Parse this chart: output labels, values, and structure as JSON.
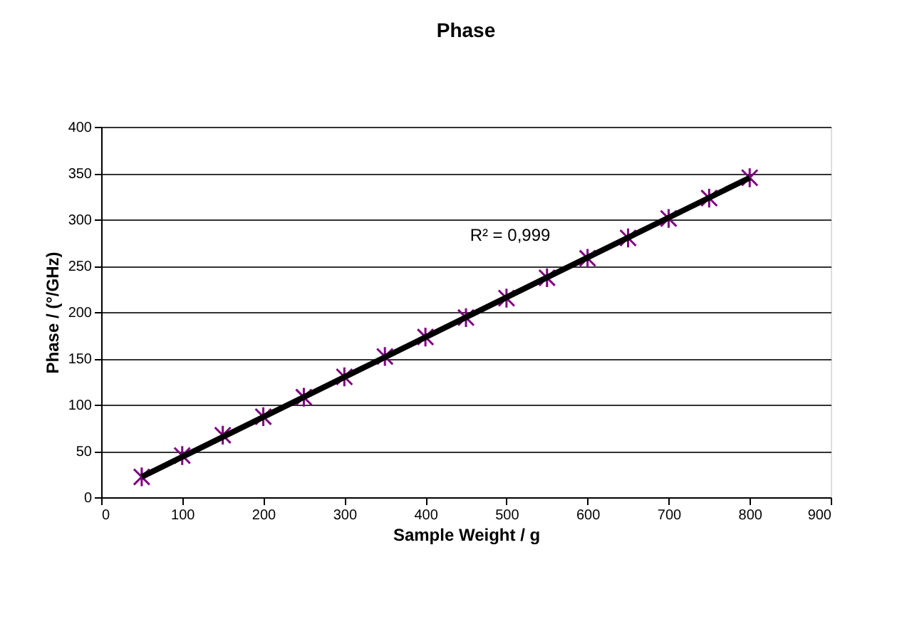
{
  "chart_data": {
    "type": "scatter",
    "title": "Phase",
    "xlabel": "Sample Weight / g",
    "ylabel": "Phase / (°/GHz)",
    "x": [
      50,
      100,
      150,
      200,
      250,
      300,
      350,
      400,
      450,
      500,
      550,
      600,
      650,
      700,
      750,
      800
    ],
    "series": [
      {
        "color": "#800080",
        "marker": "cross",
        "values": [
          22,
          45,
          67,
          87,
          108,
          130,
          152,
          173,
          194,
          215,
          237,
          258,
          280,
          301,
          323,
          345
        ]
      },
      {
        "type": "line",
        "color": "#000000",
        "marker": "none",
        "line_style": "solid",
        "x": [
          50,
          800
        ],
        "values": [
          22,
          345
        ]
      }
    ],
    "xlim": [
      0,
      900
    ],
    "xticks": [
      0,
      100,
      200,
      300,
      400,
      500,
      600,
      700,
      800,
      900
    ],
    "ylim": [
      0,
      400
    ],
    "yticks": [
      0,
      50,
      100,
      150,
      200,
      250,
      300,
      350,
      400
    ],
    "grid": "y",
    "annotations": [
      "R² = 0,999"
    ]
  }
}
